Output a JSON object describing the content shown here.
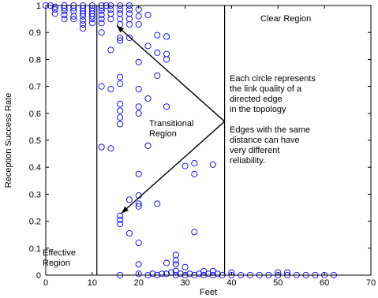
{
  "chart_data": {
    "type": "scatter",
    "xlabel": "Feet",
    "ylabel": "Reception Success Rate",
    "xlim": [
      0,
      70
    ],
    "ylim": [
      0,
      1
    ],
    "xticks": [
      "0",
      "10",
      "20",
      "30",
      "40",
      "50",
      "60",
      "70"
    ],
    "yticks": [
      "0",
      "0.1",
      "0.2",
      "0.3",
      "0.4",
      "0.5",
      "0.6",
      "0.7",
      "0.8",
      "0.9",
      "1"
    ],
    "grid": false,
    "marker_color": "#0000ff",
    "region_boundaries_x": [
      11,
      38.5
    ],
    "annotations": {
      "effective_region": [
        "Effective",
        "Region"
      ],
      "transitional_region": [
        "Transitional",
        "Region"
      ],
      "clear_region": [
        "Clear Region"
      ],
      "note": [
        "Each circle represents",
        "the link quality of a",
        "directed edge",
        "in the topology",
        "",
        "Edges with the same",
        "distance can have",
        "very different",
        "reliability."
      ]
    },
    "arrows": [
      {
        "from": [
          38.5,
          0.57
        ],
        "to": [
          15.3,
          0.925
        ]
      },
      {
        "from": [
          38.5,
          0.57
        ],
        "to": [
          16.3,
          0.23
        ]
      }
    ],
    "points": [
      [
        0,
        1
      ],
      [
        1,
        1
      ],
      [
        2,
        0.995
      ],
      [
        2,
        0.985
      ],
      [
        2,
        0.97
      ],
      [
        4,
        1
      ],
      [
        4,
        0.99
      ],
      [
        4,
        0.98
      ],
      [
        4,
        0.965
      ],
      [
        4,
        0.95
      ],
      [
        6,
        1
      ],
      [
        6,
        0.99
      ],
      [
        6,
        0.98
      ],
      [
        6,
        0.96
      ],
      [
        6,
        0.95
      ],
      [
        8,
        1
      ],
      [
        8,
        0.99
      ],
      [
        8,
        0.98
      ],
      [
        8,
        0.97
      ],
      [
        8,
        0.96
      ],
      [
        8,
        0.945
      ],
      [
        8,
        0.93
      ],
      [
        8,
        0.915
      ],
      [
        10,
        1
      ],
      [
        10,
        0.99
      ],
      [
        10,
        0.98
      ],
      [
        10,
        0.97
      ],
      [
        10,
        0.96
      ],
      [
        10,
        0.95
      ],
      [
        10,
        0.935
      ],
      [
        12,
        1
      ],
      [
        12,
        0.99
      ],
      [
        12,
        0.98
      ],
      [
        12,
        0.965
      ],
      [
        12,
        0.95
      ],
      [
        12,
        0.935
      ],
      [
        12,
        0.9
      ],
      [
        12,
        0.7
      ],
      [
        12,
        0.475
      ],
      [
        13,
        1
      ],
      [
        14,
        1
      ],
      [
        14,
        0.985
      ],
      [
        14,
        0.97
      ],
      [
        14,
        0.95
      ],
      [
        14,
        0.835
      ],
      [
        14,
        0.69
      ],
      [
        14,
        0.47
      ],
      [
        16,
        1
      ],
      [
        16,
        0.985
      ],
      [
        16,
        0.97
      ],
      [
        16,
        0.95
      ],
      [
        16,
        0.93
      ],
      [
        16,
        0.88
      ],
      [
        16,
        0.87
      ],
      [
        16,
        0.735
      ],
      [
        16,
        0.71
      ],
      [
        16,
        0.635
      ],
      [
        16,
        0.61
      ],
      [
        16,
        0.585
      ],
      [
        16,
        0.56
      ],
      [
        16,
        0.22
      ],
      [
        16,
        0.205
      ],
      [
        16,
        0.19
      ],
      [
        16,
        0
      ],
      [
        18,
        1
      ],
      [
        18,
        0.985
      ],
      [
        18,
        0.97
      ],
      [
        18,
        0.95
      ],
      [
        18,
        0.93
      ],
      [
        18,
        0.88
      ],
      [
        18,
        0.28
      ],
      [
        18,
        0.155
      ],
      [
        20,
        0.985
      ],
      [
        20,
        0.96
      ],
      [
        20,
        0.93
      ],
      [
        20,
        0.79
      ],
      [
        20,
        0.69
      ],
      [
        20,
        0.625
      ],
      [
        20,
        0.6
      ],
      [
        20,
        0.375
      ],
      [
        20,
        0.295
      ],
      [
        20,
        0.265
      ],
      [
        20,
        0.255
      ],
      [
        20,
        0.12
      ],
      [
        20,
        0.04
      ],
      [
        20,
        0.005
      ],
      [
        22,
        0.965
      ],
      [
        22,
        0.85
      ],
      [
        22,
        0.655
      ],
      [
        22,
        0.48
      ],
      [
        22,
        0
      ],
      [
        23,
        0.005
      ],
      [
        24,
        0.89
      ],
      [
        24,
        0.825
      ],
      [
        24,
        0.74
      ],
      [
        24,
        0.265
      ],
      [
        24,
        0
      ],
      [
        25,
        0.005
      ],
      [
        26,
        0.885
      ],
      [
        26,
        0.82
      ],
      [
        26,
        0.8
      ],
      [
        26,
        0.625
      ],
      [
        26,
        0.045
      ],
      [
        26,
        0.005
      ],
      [
        27,
        0.01
      ],
      [
        28,
        0.075
      ],
      [
        28,
        0.055
      ],
      [
        28,
        0.04
      ],
      [
        28,
        0.015
      ],
      [
        28,
        0
      ],
      [
        29,
        0.005
      ],
      [
        30,
        0.405
      ],
      [
        30,
        0.03
      ],
      [
        30,
        0
      ],
      [
        31,
        0.005
      ],
      [
        32,
        0.415
      ],
      [
        32,
        0.375
      ],
      [
        32,
        0.16
      ],
      [
        32,
        0
      ],
      [
        33,
        0.005
      ],
      [
        34,
        0.015
      ],
      [
        34,
        0
      ],
      [
        35,
        0.005
      ],
      [
        36,
        0.41
      ],
      [
        36,
        0.015
      ],
      [
        36,
        0
      ],
      [
        37,
        0.005
      ],
      [
        38,
        0
      ],
      [
        40,
        0.01
      ],
      [
        40,
        0
      ],
      [
        42,
        0
      ],
      [
        44,
        0
      ],
      [
        46,
        0
      ],
      [
        48,
        0
      ],
      [
        50,
        0
      ],
      [
        50,
        0.01
      ],
      [
        52,
        0
      ],
      [
        52,
        0.01
      ],
      [
        54,
        0
      ],
      [
        56,
        0
      ],
      [
        58,
        0
      ],
      [
        60,
        0
      ],
      [
        62,
        0
      ]
    ]
  }
}
